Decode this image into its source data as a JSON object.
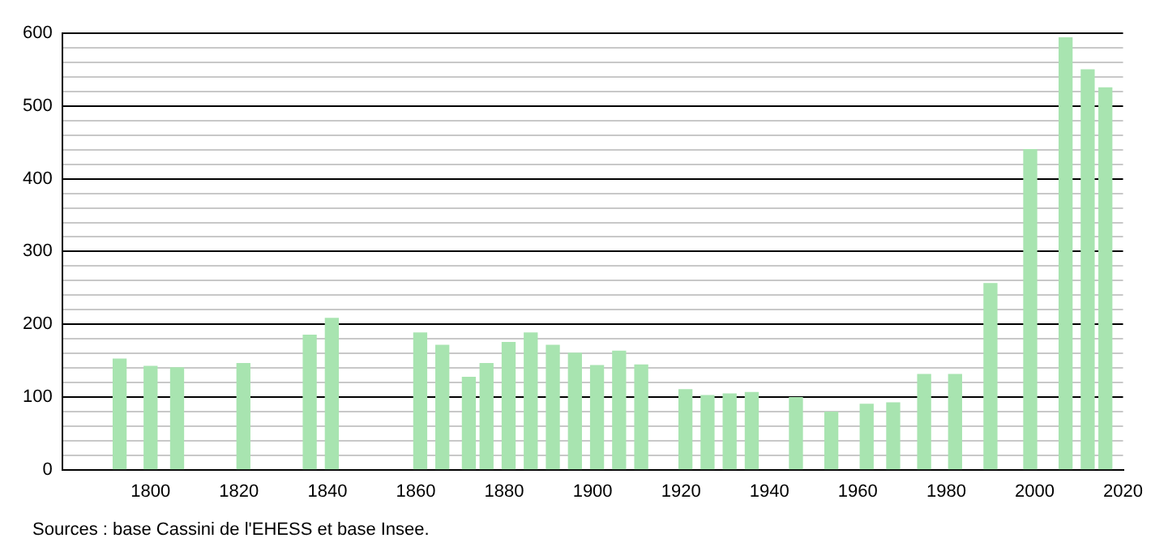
{
  "chart_data": {
    "type": "bar",
    "x": [
      1793,
      1800,
      1806,
      1821,
      1836,
      1841,
      1861,
      1866,
      1872,
      1876,
      1881,
      1886,
      1891,
      1896,
      1901,
      1906,
      1911,
      1921,
      1926,
      1931,
      1936,
      1946,
      1954,
      1962,
      1968,
      1975,
      1982,
      1990,
      1999,
      2007,
      2012,
      2016
    ],
    "values": [
      152,
      142,
      140,
      146,
      185,
      208,
      188,
      171,
      127,
      146,
      175,
      188,
      171,
      160,
      143,
      163,
      144,
      110,
      102,
      104,
      106,
      99,
      79,
      90,
      92,
      131,
      131,
      256,
      440,
      594,
      550,
      525
    ],
    "color": "#a8e4b0",
    "xlim": [
      1780,
      2020
    ],
    "xticks": [
      1800,
      1820,
      1840,
      1860,
      1880,
      1900,
      1920,
      1940,
      1960,
      1980,
      2000,
      2020
    ],
    "ylim": [
      0,
      600
    ],
    "yticks": [
      0,
      {
        "value": 20,
        "label": null
      },
      {
        "value": 40,
        "label": null
      },
      {
        "value": 60,
        "label": null
      },
      {
        "value": 80,
        "label": null
      },
      100,
      {
        "value": 120,
        "label": null
      },
      {
        "value": 140,
        "label": null
      },
      {
        "value": 160,
        "label": null
      },
      {
        "value": 180,
        "label": null
      },
      200,
      {
        "value": 220,
        "label": null
      },
      {
        "value": 240,
        "label": null
      },
      {
        "value": 260,
        "label": null
      },
      {
        "value": 280,
        "label": null
      },
      300,
      {
        "value": 320,
        "label": null
      },
      {
        "value": 340,
        "label": null
      },
      {
        "value": 360,
        "label": null
      },
      {
        "value": 380,
        "label": null
      },
      400,
      {
        "value": 420,
        "label": null
      },
      {
        "value": 440,
        "label": null
      },
      {
        "value": 460,
        "label": null
      },
      {
        "value": 480,
        "label": null
      },
      500,
      {
        "value": 520,
        "label": null
      },
      {
        "value": 540,
        "label": null
      },
      {
        "value": 560,
        "label": null
      },
      {
        "value": 580,
        "label": null
      },
      600
    ],
    "grid": "y",
    "legend": false,
    "annotations": [
      "Sources : base Cassini de l'EHESS et base Insee."
    ]
  }
}
